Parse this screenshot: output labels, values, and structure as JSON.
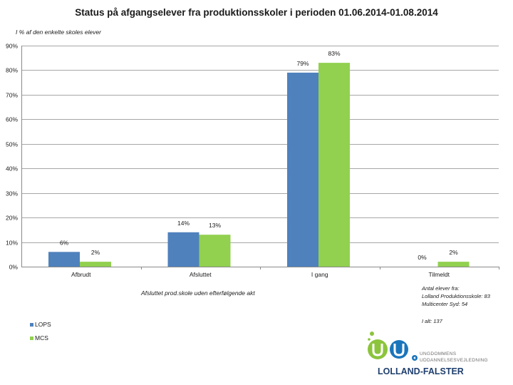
{
  "title": "Status på afgangselever fra produktionsskoler i perioden 01.06.2014-01.08.2014",
  "subtitle": "I % af den enkelte skoles elever",
  "note": "Afsluttet prod.skole uden efterfølgende akt",
  "counts": {
    "heading": "Antal elever fra:",
    "lops": "Lolland Produktionsskole: 83",
    "mcs": "Multicenter Syd: 54",
    "total": "I alt: 137"
  },
  "logo": {
    "line1": "UNGDOMMENS",
    "line2": "UDDANNELSESVEJLEDNING",
    "brand": "LOLLAND-FALSTER",
    "colors": {
      "green": "#8cc43c",
      "blue": "#1b75bb",
      "navy": "#1f3f6e"
    }
  },
  "chart_data": {
    "type": "bar",
    "title": "Status på afgangselever fra produktionsskoler i perioden 01.06.2014-01.08.2014",
    "ylabel": "I % af den enkelte skoles elever",
    "xlabel": "",
    "ylim": [
      0,
      90
    ],
    "yticks": [
      0,
      10,
      20,
      30,
      40,
      50,
      60,
      70,
      80,
      90
    ],
    "ytick_labels": [
      "0%",
      "10%",
      "20%",
      "30%",
      "40%",
      "50%",
      "60%",
      "70%",
      "80%",
      "90%"
    ],
    "grid": true,
    "legend_position": "bottom-left",
    "categories": [
      "Afbrudt",
      "Afsluttet",
      "I gang",
      "Tilmeldt"
    ],
    "series": [
      {
        "name": "LOPS",
        "color": "#4f81bd",
        "values": [
          6,
          14,
          79,
          0
        ],
        "labels": [
          "6%",
          "14%",
          "79%",
          "0%"
        ]
      },
      {
        "name": "MCS",
        "color": "#92d050",
        "values": [
          2,
          13,
          83,
          2
        ],
        "labels": [
          "2%",
          "13%",
          "83%",
          "2%"
        ]
      }
    ]
  }
}
